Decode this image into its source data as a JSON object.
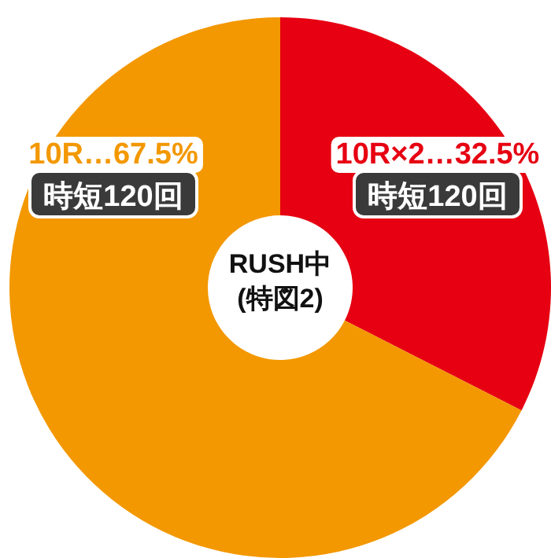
{
  "chart_data": {
    "type": "donut",
    "categories": [
      "10R×2…32.5%",
      "10R…67.5%"
    ],
    "values": [
      32.5,
      67.5
    ],
    "colors": [
      "#e60012",
      "#f39800"
    ],
    "annotations": [
      "時短120回",
      "時短120回",
      "RUSH中\n(特図2)"
    ]
  }
}
